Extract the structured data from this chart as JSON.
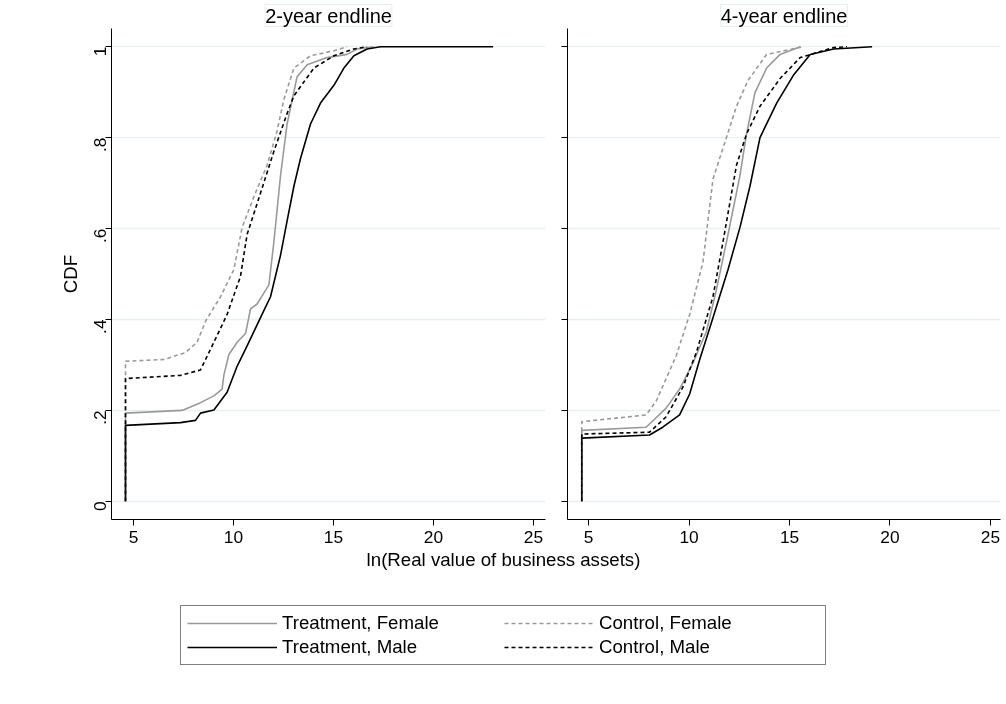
{
  "chart_data": [
    {
      "type": "line",
      "title": "2-year endline",
      "xlabel": "ln(Real value of business assets)",
      "ylabel": "CDF",
      "xlim": [
        3.9,
        25.6
      ],
      "ylim": [
        -0.04,
        1.04
      ],
      "xticks": [
        5,
        10,
        15,
        20,
        25
      ],
      "yticks": [
        0,
        {
          "value": 0.2,
          "label": ".2"
        },
        {
          "value": 0.4,
          "label": ".4"
        },
        {
          "value": 0.6,
          "label": ".6"
        },
        {
          "value": 0.8,
          "label": ".8"
        },
        1
      ],
      "grid": "y",
      "legend": "bottom",
      "series": [
        {
          "name": "Treatment, Female",
          "color": "#9a9a9a",
          "line_style": "solid",
          "x": [
            4.6,
            4.6,
            7.43,
            8.35,
            9.02,
            9.43,
            9.52,
            9.77,
            10.18,
            10.6,
            10.85,
            11.18,
            11.77,
            12.02,
            12.35,
            12.68,
            13.18,
            13.68,
            14.68,
            15.68,
            16.18,
            17.0
          ],
          "values": [
            0,
            0.194,
            0.2,
            0.217,
            0.232,
            0.247,
            0.278,
            0.323,
            0.35,
            0.369,
            0.423,
            0.434,
            0.476,
            0.571,
            0.716,
            0.83,
            0.934,
            0.96,
            0.976,
            0.983,
            0.995,
            1.0
          ]
        },
        {
          "name": "Treatment, Male",
          "color": "#000000",
          "line_style": "solid",
          "x": [
            4.6,
            4.6,
            7.35,
            8.1,
            8.35,
            9.02,
            9.68,
            10.18,
            10.68,
            11.35,
            11.85,
            12.35,
            12.68,
            13.02,
            13.35,
            13.85,
            14.35,
            15.02,
            15.52,
            16.02,
            16.68,
            17.35,
            22.98
          ],
          "values": [
            0,
            0.167,
            0.173,
            0.178,
            0.194,
            0.201,
            0.24,
            0.297,
            0.342,
            0.404,
            0.45,
            0.541,
            0.617,
            0.693,
            0.754,
            0.83,
            0.876,
            0.915,
            0.953,
            0.98,
            0.995,
            1.0,
            1.0
          ]
        },
        {
          "name": "Control, Female",
          "color": "#9a9a9a",
          "line_style": "dashed",
          "x": [
            4.6,
            4.6,
            6.52,
            7.6,
            8.18,
            8.6,
            9.35,
            10.02,
            10.43,
            11.02,
            11.68,
            12.18,
            12.52,
            13.02,
            13.85,
            15.02,
            15.68
          ],
          "values": [
            0,
            0.308,
            0.312,
            0.327,
            0.35,
            0.396,
            0.45,
            0.51,
            0.602,
            0.67,
            0.739,
            0.815,
            0.884,
            0.953,
            0.98,
            0.991,
            1.0
          ]
        },
        {
          "name": "Control, Male",
          "color": "#000000",
          "line_style": "dashed",
          "x": [
            4.6,
            4.6,
            7.35,
            8.35,
            9.02,
            9.68,
            10.35,
            10.68,
            11.35,
            12.02,
            12.68,
            13.02,
            14.02,
            15.02,
            16.02,
            16.68
          ],
          "values": [
            0,
            0.27,
            0.277,
            0.289,
            0.35,
            0.411,
            0.495,
            0.587,
            0.678,
            0.77,
            0.853,
            0.892,
            0.953,
            0.98,
            0.995,
            1.0
          ]
        }
      ]
    },
    {
      "type": "line",
      "title": "4-year endline",
      "xlim": [
        3.95,
        25.5
      ],
      "ylim": [
        -0.04,
        1.04
      ],
      "xticks": [
        5,
        10,
        15,
        20,
        25
      ],
      "yticks": [
        0,
        0.2,
        0.4,
        0.6,
        0.8,
        1
      ],
      "grid": "y",
      "tick_labels": "x",
      "series": [
        {
          "color": "#9a9a9a",
          "line_style": "solid",
          "x": [
            4.66,
            4.66,
            7.86,
            8.86,
            9.53,
            10.19,
            10.86,
            11.36,
            11.94,
            12.53,
            12.86,
            13.28,
            13.86,
            14.53,
            15.53
          ],
          "values": [
            0,
            0.156,
            0.163,
            0.205,
            0.247,
            0.304,
            0.373,
            0.465,
            0.587,
            0.716,
            0.808,
            0.899,
            0.953,
            0.983,
            1.0
          ]
        },
        {
          "color": "#000000",
          "line_style": "solid",
          "x": [
            4.66,
            4.66,
            8.03,
            8.69,
            9.53,
            10.03,
            10.53,
            11.19,
            11.94,
            12.53,
            13.03,
            13.53,
            14.36,
            15.19,
            16.03,
            17.19,
            19.11
          ],
          "values": [
            0,
            0.139,
            0.146,
            0.163,
            0.19,
            0.236,
            0.312,
            0.404,
            0.51,
            0.602,
            0.693,
            0.8,
            0.876,
            0.937,
            0.983,
            0.995,
            1.0
          ]
        },
        {
          "color": "#9a9a9a",
          "line_style": "dashed",
          "x": [
            4.66,
            4.66,
            7.86,
            8.36,
            9.36,
            10.03,
            10.69,
            11.19,
            11.86,
            12.36,
            12.94,
            13.86,
            15.69
          ],
          "values": [
            0,
            0.175,
            0.19,
            0.22,
            0.32,
            0.411,
            0.526,
            0.709,
            0.8,
            0.869,
            0.926,
            0.983,
            1.0
          ]
        },
        {
          "color": "#000000",
          "line_style": "dashed",
          "x": [
            4.66,
            4.66,
            8.03,
            8.86,
            9.69,
            10.36,
            11.19,
            11.69,
            12.36,
            12.86,
            13.53,
            14.53,
            15.53,
            17.19,
            17.86
          ],
          "values": [
            0,
            0.148,
            0.152,
            0.186,
            0.251,
            0.327,
            0.45,
            0.571,
            0.739,
            0.808,
            0.869,
            0.93,
            0.976,
            0.998,
            1.0
          ]
        }
      ]
    }
  ]
}
